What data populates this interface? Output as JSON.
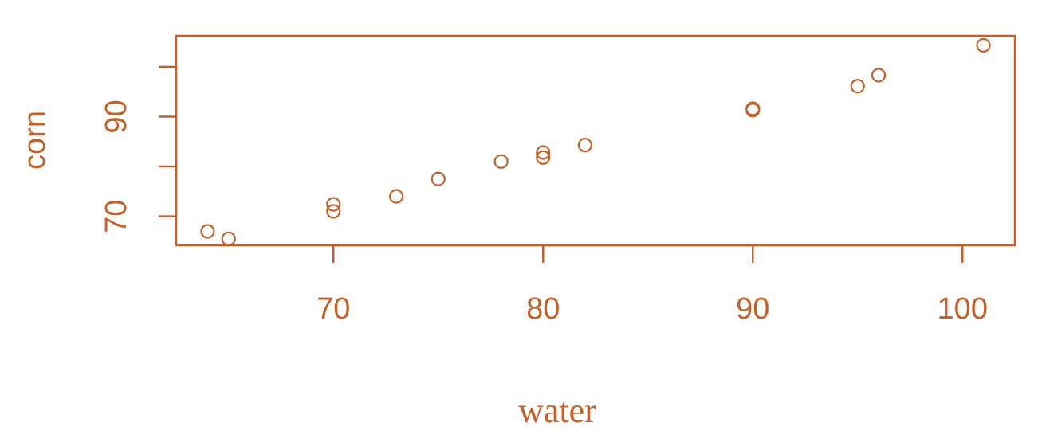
{
  "colors": {
    "accent": "#c0622a"
  },
  "chart_data": {
    "type": "scatter",
    "title": "",
    "xlabel": "water",
    "ylabel": "corn",
    "xlim": [
      62.5,
      102.5
    ],
    "ylim": [
      64.2,
      106.2
    ],
    "x_ticks": [
      70,
      80,
      90,
      100
    ],
    "x_tick_labels": [
      "70",
      "80",
      "90",
      "100"
    ],
    "y_ticks": [
      70,
      80,
      90,
      100
    ],
    "y_tick_labels": [
      "70",
      "",
      "90",
      ""
    ],
    "grid": false,
    "legend": "none",
    "marker": "open-circle",
    "series": [
      {
        "points": [
          {
            "x": 64,
            "y": 67.0
          },
          {
            "x": 65,
            "y": 65.5
          },
          {
            "x": 70,
            "y": 72.4
          },
          {
            "x": 70,
            "y": 71.0
          },
          {
            "x": 73,
            "y": 74.0
          },
          {
            "x": 75,
            "y": 77.5
          },
          {
            "x": 78,
            "y": 81.0
          },
          {
            "x": 80,
            "y": 82.8
          },
          {
            "x": 80,
            "y": 81.8
          },
          {
            "x": 82,
            "y": 84.3
          },
          {
            "x": 90,
            "y": 91.6
          },
          {
            "x": 90,
            "y": 91.3
          },
          {
            "x": 95,
            "y": 96.1
          },
          {
            "x": 96,
            "y": 98.3
          },
          {
            "x": 101,
            "y": 104.3
          }
        ]
      }
    ]
  }
}
